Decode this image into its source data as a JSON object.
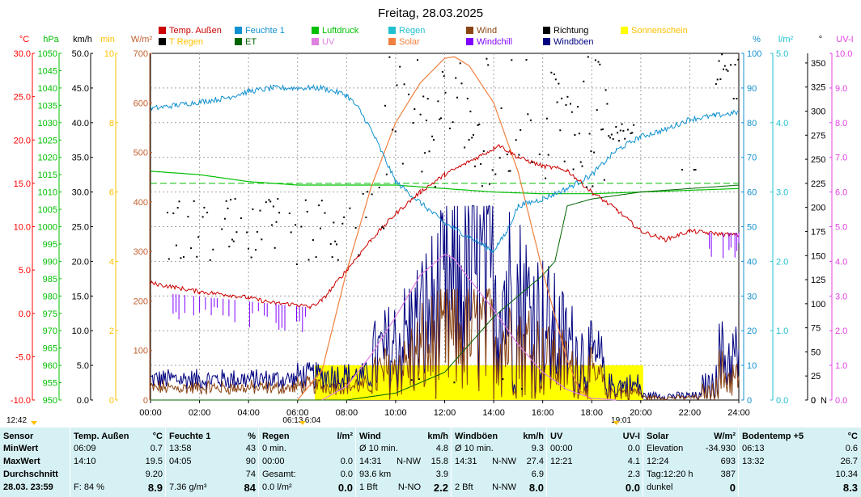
{
  "chart_data": {
    "type": "line",
    "title": "Freitag, 28.03.2025",
    "x_ticks": [
      "00:00",
      "02:00",
      "04:00",
      "06:00",
      "08:00",
      "10:00",
      "12:00",
      "14:00",
      "16:00",
      "18:00",
      "20:00",
      "22:00",
      "24:00"
    ],
    "axes_left": [
      {
        "unit": "°C",
        "color": "#ff0000",
        "ticks": [
          "30.0",
          "25.0",
          "20.0",
          "15.0",
          "10.0",
          "5.0",
          "0.0",
          "-5.0",
          "-10.0"
        ]
      },
      {
        "unit": "hPa",
        "color": "#00c000",
        "ticks": [
          "1050",
          "1045",
          "1040",
          "1035",
          "1030",
          "1025",
          "1020",
          "1015",
          "1010",
          "1005",
          "1000",
          "995",
          "990",
          "985",
          "980",
          "975",
          "970",
          "965",
          "960",
          "955",
          "950"
        ]
      },
      {
        "unit": "km/h",
        "color": "#000000",
        "ticks": [
          "50.0",
          "45.0",
          "40.0",
          "35.0",
          "30.0",
          "25.0",
          "20.0",
          "15.0",
          "10.0",
          "5.0",
          "0.0"
        ]
      },
      {
        "unit": "min",
        "color": "#ffc000",
        "ticks": [
          "10",
          "8",
          "6",
          "4",
          "2",
          "0"
        ]
      },
      {
        "unit": "W/m²",
        "color": "#c06030",
        "ticks": [
          "700",
          "600",
          "500",
          "400",
          "300",
          "200",
          "100",
          "0"
        ]
      }
    ],
    "axes_right": [
      {
        "unit": "%",
        "color": "#1090d0",
        "ticks": [
          "100",
          "90",
          "80",
          "70",
          "60",
          "50",
          "40",
          "30",
          "20",
          "10",
          "0"
        ]
      },
      {
        "unit": "l/m²",
        "color": "#20c0d0",
        "ticks": [
          "5.0",
          "4.0",
          "3.0",
          "2.0",
          "1.0",
          "0.0"
        ]
      },
      {
        "unit": "°",
        "color": "#000000",
        "ticks": [
          "350",
          "325",
          "300",
          "275",
          "250",
          "225",
          "200",
          "175",
          "150",
          "125",
          "100",
          "75",
          "50",
          "25",
          "0"
        ],
        "bottom_label": "N"
      },
      {
        "unit": "UV-I",
        "color": "#e040e0",
        "ticks": [
          "10.0",
          "9.0",
          "8.0",
          "7.0",
          "6.0",
          "5.0",
          "4.0",
          "3.0",
          "2.0",
          "1.0",
          "0.0"
        ]
      }
    ],
    "legend": [
      {
        "name": "Temp. Außen",
        "color": "#cc0000",
        "text_color": "#cc0000"
      },
      {
        "name": "Feuchte 1",
        "color": "#1090d0",
        "text_color": "#1090d0"
      },
      {
        "name": "Luftdruck",
        "color": "#00c000",
        "text_color": "#00c000"
      },
      {
        "name": "Regen",
        "color": "#20c0d0",
        "text_color": "#20c0d0"
      },
      {
        "name": "Wind",
        "color": "#8b4513",
        "text_color": "#8b4513"
      },
      {
        "name": "Richtung",
        "color": "#000000",
        "text_color": "#000000"
      },
      {
        "name": "Sonnenschein",
        "color": "#ffff00",
        "text_color": "#ffc000"
      },
      {
        "name": "T Regen",
        "color": "#000000",
        "text_color": "#ffc000"
      },
      {
        "name": "ET",
        "color": "#006400",
        "text_color": "#006400"
      },
      {
        "name": "UV",
        "color": "#e080e0",
        "text_color": "#e080e0"
      },
      {
        "name": "Solar",
        "color": "#f08040",
        "text_color": "#f08040"
      },
      {
        "name": "Windchill",
        "color": "#8000ff",
        "text_color": "#8000ff"
      },
      {
        "name": "Windböen",
        "color": "#000080",
        "text_color": "#000080"
      }
    ],
    "series": [
      {
        "name": "Temp. Außen",
        "unit": "°C",
        "x": [
          0,
          1,
          2,
          3,
          4,
          5,
          6,
          6.5,
          7,
          8,
          9,
          10,
          11,
          12,
          13,
          14,
          14.17,
          15,
          16,
          17,
          18,
          19,
          20,
          21,
          22,
          23,
          24
        ],
        "y": [
          3.5,
          3.0,
          2.5,
          2.2,
          1.8,
          1.2,
          1.0,
          0.7,
          1.5,
          5,
          8.5,
          11.5,
          14,
          16,
          17.5,
          19,
          19.5,
          18,
          17,
          16.5,
          14,
          12,
          9.5,
          8.5,
          9.5,
          9.2,
          9.0
        ]
      },
      {
        "name": "Feuchte 1",
        "unit": "%",
        "x": [
          0,
          1,
          2,
          3,
          4,
          5,
          6,
          6.5,
          7,
          8,
          8.5,
          9,
          10,
          11,
          12,
          13,
          13.97,
          14.5,
          15,
          16,
          17,
          18,
          19,
          20,
          21,
          22,
          23,
          24
        ],
        "y": [
          84,
          85,
          86,
          87,
          89,
          90,
          90,
          90,
          90,
          88,
          84,
          78,
          63,
          57,
          51,
          47,
          43,
          48,
          56,
          58,
          61,
          65,
          72,
          76,
          78,
          81,
          82,
          83
        ]
      },
      {
        "name": "Luftdruck",
        "unit": "hPa",
        "x": [
          0,
          2,
          4,
          6,
          8,
          10,
          12,
          14,
          16,
          18,
          20,
          22,
          24
        ],
        "y": [
          1016,
          1015,
          1013,
          1012,
          1012,
          1012,
          1011,
          1010,
          1009.5,
          1009.5,
          1010,
          1010.5,
          1011
        ]
      },
      {
        "name": "Solar",
        "unit": "W/m²",
        "x": [
          6,
          7,
          8,
          9,
          10,
          11,
          12,
          12.4,
          13,
          14,
          15,
          16,
          17,
          17.5,
          18
        ],
        "y": [
          0,
          60,
          260,
          430,
          560,
          640,
          690,
          693,
          675,
          600,
          460,
          260,
          80,
          20,
          0
        ]
      },
      {
        "name": "UV",
        "unit": "UV-I",
        "x": [
          7,
          8,
          9,
          10,
          11,
          12,
          12.35,
          13,
          14,
          15,
          16,
          17,
          18,
          19
        ],
        "y": [
          0,
          0.4,
          1.3,
          2.4,
          3.6,
          4.2,
          4.1,
          3.5,
          2.6,
          1.6,
          0.8,
          0.3,
          0.05,
          0
        ]
      },
      {
        "name": "ET",
        "unit": "l/m²",
        "x": [
          0,
          8,
          10,
          12,
          13,
          14,
          15,
          16,
          16.5,
          17,
          18,
          20,
          22,
          24
        ],
        "y": [
          0,
          0,
          0.1,
          0.4,
          0.8,
          1.2,
          1.5,
          1.8,
          2.0,
          2.8,
          2.9,
          3.0,
          3.05,
          3.1
        ]
      }
    ],
    "sunshine": {
      "unit": "min",
      "start": "06:13",
      "end": "19:01",
      "bands": [
        [
          6.7,
          7.2
        ],
        [
          7.2,
          8.2
        ],
        [
          8.2,
          10.2
        ],
        [
          10.2,
          20.1
        ]
      ]
    },
    "sunrise_label": "06:13",
    "sunset_label": "19:01",
    "rain_time_label": "6:04",
    "left_time_label": "12:42"
  },
  "stats": {
    "sensor_header": "Sensor",
    "row_labels": [
      "MinWert",
      "MaxWert",
      "Durchschnitt",
      "28.03. 23:59"
    ],
    "columns": [
      {
        "title": "Temp. Außen",
        "unit": "°C",
        "rows": [
          [
            "06:09",
            "",
            "0.7"
          ],
          [
            "14:10",
            "",
            "19.5"
          ],
          [
            "",
            "",
            "9.20"
          ],
          [
            "F: 84 %",
            "",
            "8.9"
          ]
        ]
      },
      {
        "title": "Feuchte 1",
        "unit": "%",
        "rows": [
          [
            "13:58",
            "",
            "43"
          ],
          [
            "04:05",
            "",
            "90"
          ],
          [
            "",
            "",
            "74"
          ],
          [
            "7.36 g/m³",
            "",
            "84"
          ]
        ]
      },
      {
        "title": "Regen",
        "unit": "l/m²",
        "rows": [
          [
            "0 min.",
            "",
            ""
          ],
          [
            "00:00",
            "",
            "0.0"
          ],
          [
            "Gesamt:",
            "",
            "0.0"
          ],
          [
            "0.0 l/m²",
            "",
            "0.0"
          ]
        ]
      },
      {
        "title": "Wind",
        "unit": "km/h",
        "rows": [
          [
            "Ø 10 min.",
            "",
            "4.8"
          ],
          [
            "14:31",
            "N-NW",
            "15.8"
          ],
          [
            "93.6 km",
            "",
            "3.9"
          ],
          [
            "1 Bft",
            "N-NO",
            "2.2"
          ]
        ]
      },
      {
        "title": "Windböen",
        "unit": "km/h",
        "rows": [
          [
            "Ø 10 min.",
            "",
            "9.3"
          ],
          [
            "14:31",
            "N-NW",
            "27.4"
          ],
          [
            "",
            "",
            "6.9"
          ],
          [
            "2 Bft",
            "N-NW",
            "8.0"
          ]
        ]
      },
      {
        "title": "UV",
        "unit": "UV-I",
        "rows": [
          [
            "00:00",
            "",
            "0.0"
          ],
          [
            "12:21",
            "",
            "4.1"
          ],
          [
            "",
            "",
            "2.3"
          ],
          [
            "",
            "",
            "0.0"
          ]
        ]
      },
      {
        "title": "Solar",
        "unit": "W/m²",
        "rows": [
          [
            "Elevation",
            "",
            "-34.930"
          ],
          [
            "12:24",
            "",
            "693"
          ],
          [
            "Tag:12:20 h",
            "",
            "387"
          ],
          [
            "dunkel",
            "",
            "0"
          ]
        ]
      },
      {
        "title": "Bodentemp +5",
        "unit": "°C",
        "rows": [
          [
            "06:13",
            "",
            "0.6"
          ],
          [
            "13:32",
            "",
            "26.7"
          ],
          [
            "",
            "",
            "10.34"
          ],
          [
            "",
            "",
            "8.3"
          ]
        ]
      }
    ]
  }
}
